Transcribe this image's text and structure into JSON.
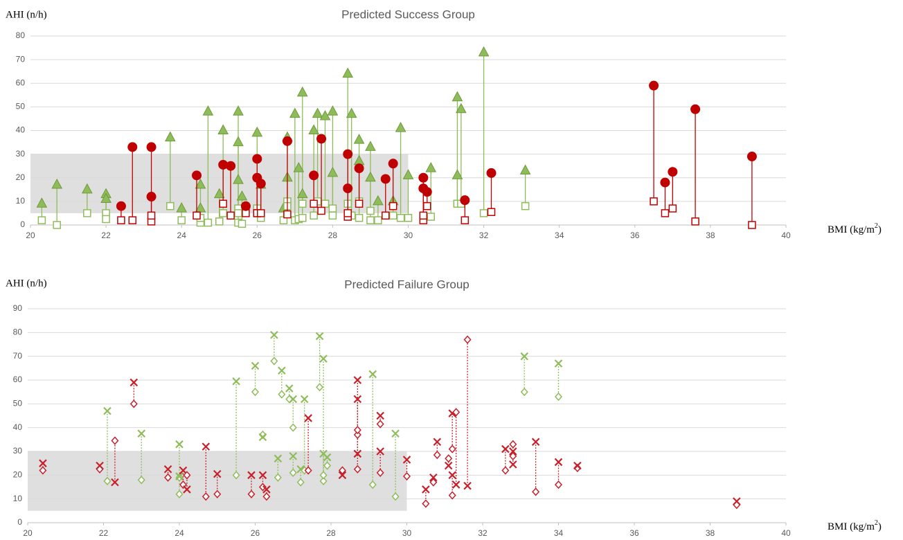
{
  "chart_data": [
    {
      "type": "scatter",
      "title": "Predicted Success Group",
      "ylabel": "AHI (n/h)",
      "xlabel": [
        "BMI (kg/m",
        "2",
        ")"
      ],
      "xlim": [
        20,
        40
      ],
      "xticks": [
        20,
        22,
        24,
        26,
        28,
        30,
        32,
        34,
        36,
        38,
        40
      ],
      "ylim": [
        0,
        80
      ],
      "yticks": [
        0,
        10,
        20,
        30,
        40,
        50,
        60,
        70,
        80
      ],
      "grid": true,
      "shaded_region": {
        "x": [
          20,
          30
        ],
        "y": [
          5,
          30
        ],
        "color": "#d9d9d9"
      },
      "series": [
        {
          "color": "#8fbc5a",
          "line": "solid",
          "marker_before": "triangle",
          "marker_after": "square",
          "x": [
            20.3,
            20.7,
            21.5,
            22.0,
            22.0,
            23.7,
            24.0,
            24.5,
            24.5,
            24.7,
            25.0,
            25.1,
            25.5,
            25.5,
            25.5,
            25.6,
            26.0,
            26.1,
            26.7,
            26.8,
            26.8,
            27.0,
            27.1,
            27.2,
            27.2,
            27.5,
            27.6,
            27.8,
            28.0,
            28.0,
            28.4,
            28.5,
            28.7,
            28.7,
            29.0,
            29.0,
            29.2,
            29.6,
            29.8,
            30.0,
            30.6,
            31.3,
            31.3,
            31.4,
            32.0,
            33.1
          ],
          "before": [
            9,
            17,
            15,
            13,
            11,
            37,
            7,
            17,
            7,
            48,
            13,
            40,
            48,
            35,
            19,
            12,
            39,
            17,
            7,
            37,
            20,
            47,
            24,
            56,
            13,
            40,
            47,
            46,
            48,
            22,
            64,
            47,
            36,
            27,
            33,
            20,
            10,
            10,
            41,
            21,
            24,
            54,
            21,
            49,
            73,
            23
          ],
          "after": [
            2,
            0,
            5,
            5,
            2.5,
            8,
            2,
            1,
            3,
            1,
            1.5,
            5,
            1,
            7,
            5,
            0.5,
            7,
            3,
            2,
            10,
            8,
            2,
            2.5,
            3,
            9,
            4,
            10,
            9,
            7,
            4,
            9,
            4,
            10,
            3,
            2,
            6,
            2,
            4,
            3,
            3,
            3.5,
            9,
            9,
            9,
            5,
            8
          ]
        },
        {
          "color": "#c00000",
          "line": "solid",
          "marker_before": "circle",
          "marker_after": "square",
          "x": [
            22.4,
            22.7,
            23.2,
            23.2,
            24.4,
            25.1,
            25.3,
            25.7,
            26.0,
            26.0,
            26.1,
            26.8,
            27.5,
            27.7,
            28.4,
            28.4,
            28.7,
            29.4,
            29.6,
            30.4,
            30.4,
            30.5,
            31.5,
            32.2,
            36.5,
            36.8,
            37.0,
            37.6,
            39.1
          ],
          "before": [
            8,
            33,
            33,
            12,
            21,
            25.5,
            25,
            8,
            28,
            20,
            17.5,
            35.5,
            21,
            36.5,
            30,
            15.5,
            24,
            19.5,
            26,
            20,
            15.5,
            14,
            10.5,
            22,
            59,
            18,
            22.5,
            49,
            29
          ],
          "after": [
            2,
            2,
            1.5,
            4,
            4,
            9,
            4,
            5,
            5,
            5,
            5,
            4.5,
            9,
            6,
            3.5,
            5,
            9,
            4,
            8,
            2,
            4,
            8,
            2,
            5.5,
            10,
            5,
            7,
            1.5,
            0
          ]
        }
      ]
    },
    {
      "type": "scatter",
      "title": "Predicted Failure Group",
      "ylabel": "AHI (n/h)",
      "xlabel": [
        "BMI (kg/m",
        "2",
        ")"
      ],
      "xlim": [
        20,
        40
      ],
      "xticks": [
        20,
        22,
        24,
        26,
        28,
        30,
        32,
        34,
        36,
        38,
        40
      ],
      "ylim": [
        0,
        90
      ],
      "yticks": [
        0,
        10,
        20,
        30,
        40,
        50,
        60,
        70,
        80,
        90
      ],
      "grid": true,
      "shaded_region": {
        "x": [
          20,
          30
        ],
        "y": [
          5,
          30
        ],
        "color": "#d9d9d9"
      },
      "series": [
        {
          "color": "#8fbc5a",
          "line": "dotted",
          "marker_before": "cross",
          "marker_after": "diamond",
          "x": [
            22.1,
            23.0,
            24.0,
            24.0,
            25.5,
            26.0,
            26.2,
            26.5,
            26.6,
            26.7,
            26.9,
            27.0,
            27.0,
            27.2,
            27.3,
            27.7,
            27.8,
            27.8,
            27.9,
            29.1,
            29.7,
            33.1,
            34.0
          ],
          "before": [
            47,
            37.5,
            33,
            19.5,
            59.5,
            66,
            36,
            79,
            27,
            64,
            56.5,
            52,
            28,
            22.5,
            52,
            78.5,
            69,
            29,
            27.5,
            62.5,
            37.5,
            70,
            67
          ],
          "after": [
            17.5,
            18,
            12,
            19,
            20,
            55,
            37,
            68,
            19,
            54,
            52,
            40,
            21,
            17,
            22,
            57,
            17.5,
            20,
            24,
            16,
            11,
            55,
            53
          ]
        },
        {
          "color": "#c8202a",
          "line": "dotted",
          "marker_before": "cross",
          "marker_after": "diamond",
          "x": [
            20.4,
            21.9,
            22.3,
            22.8,
            23.7,
            24.1,
            24.2,
            24.7,
            25.0,
            25.9,
            26.2,
            26.3,
            27.4,
            28.3,
            28.7,
            28.7,
            28.7,
            29.3,
            29.3,
            30.0,
            30.5,
            30.7,
            30.8,
            31.1,
            31.2,
            31.2,
            31.3,
            31.6,
            32.6,
            32.8,
            32.8,
            33.4,
            34.0,
            34.5,
            38.7
          ],
          "before": [
            25,
            24,
            17,
            59,
            22.5,
            22,
            14,
            32,
            20.5,
            20,
            20,
            14,
            44,
            20,
            60,
            52,
            29,
            45,
            30,
            26.5,
            14,
            19,
            34,
            24,
            46,
            20,
            16,
            15.5,
            31,
            30,
            24.5,
            34,
            25.5,
            24,
            9
          ],
          "after": [
            22,
            22.5,
            34.5,
            50,
            19,
            16,
            20,
            11,
            12,
            12,
            15,
            11,
            22,
            22,
            22.5,
            37,
            39,
            41.5,
            21,
            19.5,
            8,
            17,
            28.5,
            27,
            31,
            11.5,
            46.5,
            77,
            22,
            33,
            28,
            13,
            16,
            23,
            7.5
          ]
        }
      ]
    }
  ]
}
